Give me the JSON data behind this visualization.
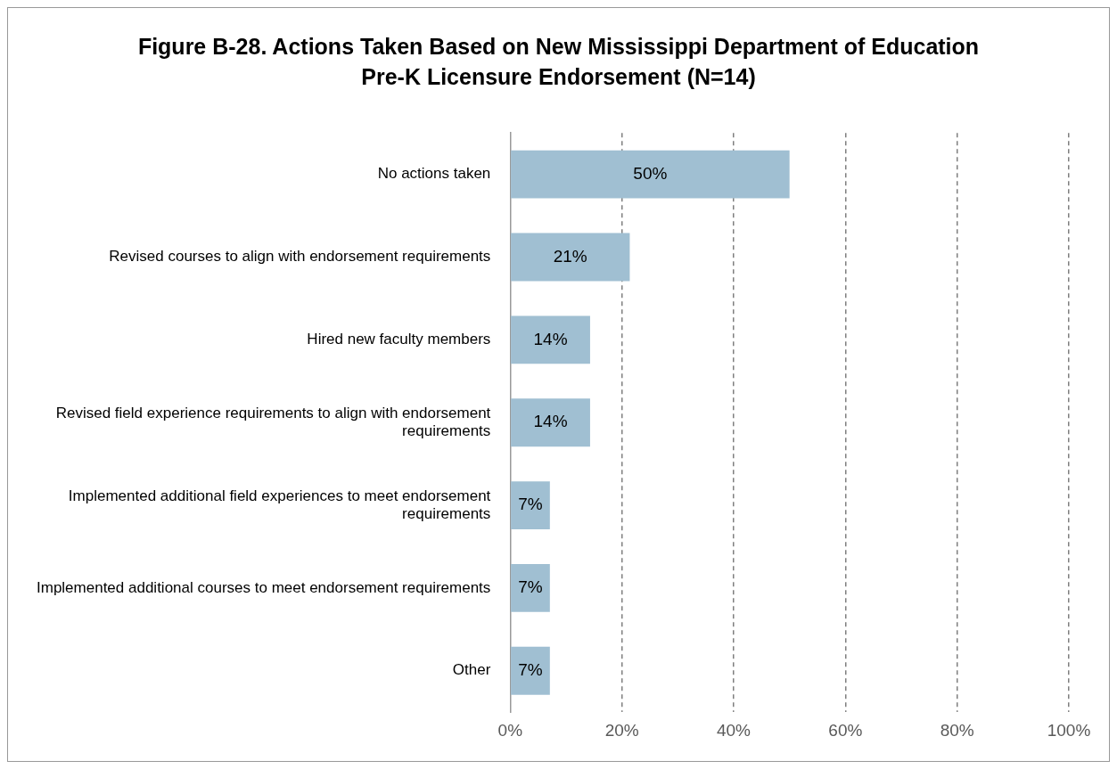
{
  "chart_data": {
    "type": "bar",
    "orientation": "horizontal",
    "title": "Figure B-28. Actions Taken Based on New Mississippi Department of Education Pre-K Licensure Endorsement (N=14)",
    "categories": [
      "No actions taken",
      "Revised courses to align with endorsement requirements",
      "Hired new faculty members",
      "Revised field experience requirements to align with endorsement requirements",
      "Implemented additional field experiences to meet endorsement requirements",
      "Implemented additional courses to meet endorsement requirements",
      "Other"
    ],
    "values": [
      50,
      21.4,
      14.3,
      14.3,
      7.1,
      7.1,
      7.1
    ],
    "value_labels": [
      "50%",
      "21%",
      "14%",
      "14%",
      "7%",
      "7%",
      "7%"
    ],
    "color": "#a0bfd2",
    "xlim": [
      0,
      100
    ],
    "xticks": [
      {
        "value": 0,
        "label": "0%"
      },
      {
        "value": 20,
        "label": "20%"
      },
      {
        "value": 40,
        "label": "40%"
      },
      {
        "value": 60,
        "label": "60%"
      },
      {
        "value": 80,
        "label": "80%"
      },
      {
        "value": 100,
        "label": "100%"
      }
    ],
    "grid": "x",
    "legend": false
  }
}
